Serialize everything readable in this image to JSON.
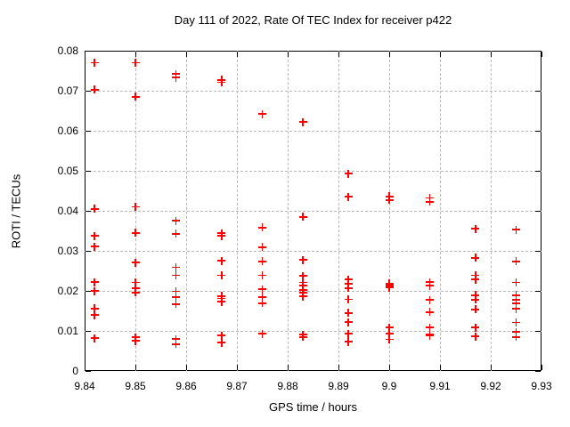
{
  "page": {
    "background": "#ffffff",
    "frame_color": "#000000",
    "grid_color": "#b8b8b8"
  },
  "chart_data": {
    "type": "scatter",
    "title": "Day 111 of 2022, Rate Of TEC Index for receiver p422",
    "xlabel": "GPS time / hours",
    "ylabel": "ROTI / TECUs",
    "xlim": [
      9.84,
      9.93
    ],
    "ylim": [
      0,
      0.08
    ],
    "xticks": [
      9.84,
      9.85,
      9.86,
      9.87,
      9.88,
      9.89,
      9.9,
      9.91,
      9.92,
      9.93
    ],
    "xtick_labels": [
      "9.84",
      "9.85",
      "9.86",
      "9.87",
      "9.88",
      "9.89",
      "9.9",
      "9.91",
      "9.92",
      "9.93"
    ],
    "yticks": [
      0,
      0.01,
      0.02,
      0.03,
      0.04,
      0.05,
      0.06,
      0.07,
      0.08
    ],
    "ytick_labels": [
      "0",
      "0.01",
      "0.02",
      "0.03",
      "0.04",
      "0.05",
      "0.06",
      "0.07",
      "0.08"
    ],
    "grid": true,
    "legend": "none",
    "marker": "plus",
    "marker_color": "#ff0000",
    "series": [
      {
        "name": "",
        "points": [
          [
            9.842,
            0.077
          ],
          [
            9.842,
            0.0703
          ],
          [
            9.842,
            0.0405
          ],
          [
            9.842,
            0.0337
          ],
          [
            9.842,
            0.0311
          ],
          [
            9.842,
            0.0222
          ],
          [
            9.842,
            0.02
          ],
          [
            9.842,
            0.0156
          ],
          [
            9.842,
            0.014
          ],
          [
            9.842,
            0.0082
          ],
          [
            9.85,
            0.077
          ],
          [
            9.85,
            0.0685
          ],
          [
            9.85,
            0.041
          ],
          [
            9.85,
            0.0345
          ],
          [
            9.85,
            0.0271
          ],
          [
            9.85,
            0.0221
          ],
          [
            9.85,
            0.0206
          ],
          [
            9.85,
            0.0196
          ],
          [
            9.85,
            0.0084
          ],
          [
            9.85,
            0.0075
          ],
          [
            9.858,
            0.0742
          ],
          [
            9.858,
            0.0733
          ],
          [
            9.858,
            0.0375
          ],
          [
            9.858,
            0.0343
          ],
          [
            9.858,
            0.0259
          ],
          [
            9.858,
            0.0239
          ],
          [
            9.858,
            0.0199
          ],
          [
            9.858,
            0.0185
          ],
          [
            9.858,
            0.0167
          ],
          [
            9.858,
            0.008
          ],
          [
            9.858,
            0.0067
          ],
          [
            9.867,
            0.0727
          ],
          [
            9.867,
            0.0721
          ],
          [
            9.867,
            0.0344
          ],
          [
            9.867,
            0.0337
          ],
          [
            9.867,
            0.0275
          ],
          [
            9.867,
            0.0239
          ],
          [
            9.867,
            0.0187
          ],
          [
            9.867,
            0.0181
          ],
          [
            9.867,
            0.0173
          ],
          [
            9.867,
            0.0088
          ],
          [
            9.867,
            0.0071
          ],
          [
            9.875,
            0.0642
          ],
          [
            9.875,
            0.0358
          ],
          [
            9.875,
            0.0309
          ],
          [
            9.875,
            0.0274
          ],
          [
            9.875,
            0.0239
          ],
          [
            9.875,
            0.0204
          ],
          [
            9.875,
            0.0185
          ],
          [
            9.875,
            0.0169
          ],
          [
            9.875,
            0.0093
          ],
          [
            9.883,
            0.0622
          ],
          [
            9.883,
            0.0385
          ],
          [
            9.883,
            0.0277
          ],
          [
            9.883,
            0.0237
          ],
          [
            9.883,
            0.0221
          ],
          [
            9.883,
            0.0214
          ],
          [
            9.883,
            0.0202
          ],
          [
            9.883,
            0.0195
          ],
          [
            9.883,
            0.0186
          ],
          [
            9.883,
            0.0091
          ],
          [
            9.883,
            0.0085
          ],
          [
            9.892,
            0.0493
          ],
          [
            9.892,
            0.0435
          ],
          [
            9.892,
            0.0228
          ],
          [
            9.892,
            0.0218
          ],
          [
            9.892,
            0.0207
          ],
          [
            9.892,
            0.0179
          ],
          [
            9.892,
            0.0145
          ],
          [
            9.892,
            0.0122
          ],
          [
            9.892,
            0.0093
          ],
          [
            9.892,
            0.0073
          ],
          [
            9.9,
            0.0436
          ],
          [
            9.9,
            0.0427
          ],
          [
            9.9,
            0.0218
          ],
          [
            9.9,
            0.0214
          ],
          [
            9.9,
            0.0208
          ],
          [
            9.9,
            0.0108
          ],
          [
            9.9,
            0.0093
          ],
          [
            9.9,
            0.0079
          ],
          [
            9.908,
            0.0432
          ],
          [
            9.908,
            0.0423
          ],
          [
            9.908,
            0.0222
          ],
          [
            9.908,
            0.0213
          ],
          [
            9.908,
            0.0177
          ],
          [
            9.908,
            0.0147
          ],
          [
            9.908,
            0.0108
          ],
          [
            9.908,
            0.0092
          ],
          [
            9.908,
            0.0088
          ],
          [
            9.917,
            0.0355
          ],
          [
            9.917,
            0.0283
          ],
          [
            9.917,
            0.0239
          ],
          [
            9.917,
            0.0228
          ],
          [
            9.917,
            0.0189
          ],
          [
            9.917,
            0.0178
          ],
          [
            9.917,
            0.0154
          ],
          [
            9.917,
            0.0108
          ],
          [
            9.917,
            0.0086
          ],
          [
            9.925,
            0.0353
          ],
          [
            9.925,
            0.0274
          ],
          [
            9.925,
            0.0221
          ],
          [
            9.925,
            0.0189
          ],
          [
            9.925,
            0.0177
          ],
          [
            9.925,
            0.0168
          ],
          [
            9.925,
            0.0155
          ],
          [
            9.925,
            0.0121
          ],
          [
            9.925,
            0.0097
          ],
          [
            9.925,
            0.0085
          ]
        ]
      }
    ]
  }
}
